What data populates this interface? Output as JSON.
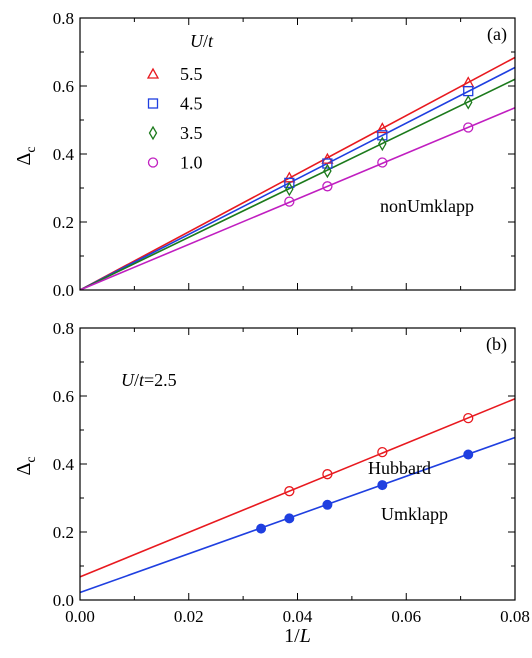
{
  "chart_data": [
    {
      "type": "scatter",
      "panel_label": "(a)",
      "ylabel": "Δc",
      "xlim": [
        0.0,
        0.08
      ],
      "ylim": [
        0.0,
        0.8
      ],
      "x_ticks": [
        "0.00",
        "0.02",
        "0.04",
        "0.06",
        "0.08"
      ],
      "y_ticks": [
        "0.0",
        "0.2",
        "0.4",
        "0.6",
        "0.8"
      ],
      "legend": {
        "title": "U/t",
        "placement": "top-left"
      },
      "annotation": "nonUmklapp",
      "series": [
        {
          "name": "5.5",
          "marker": "triangle-open",
          "color": "#e8191f",
          "x": [
            0.0385,
            0.0455,
            0.0556,
            0.0714
          ],
          "y": [
            0.33,
            0.385,
            0.475,
            0.61
          ],
          "fit": {
            "intercept": 0.0,
            "slope": 8.55
          }
        },
        {
          "name": "4.5",
          "marker": "square-open",
          "color": "#1f3fe0",
          "x": [
            0.0385,
            0.0455,
            0.0556,
            0.0714
          ],
          "y": [
            0.315,
            0.372,
            0.455,
            0.585
          ],
          "fit": {
            "intercept": 0.0,
            "slope": 8.18
          }
        },
        {
          "name": "3.5",
          "marker": "diamond-open",
          "color": "#1c7a1c",
          "x": [
            0.0385,
            0.0455,
            0.0556,
            0.0714
          ],
          "y": [
            0.297,
            0.35,
            0.43,
            0.552
          ],
          "fit": {
            "intercept": 0.0,
            "slope": 7.75
          }
        },
        {
          "name": "1.0",
          "marker": "circle-open",
          "color": "#c01ec0",
          "x": [
            0.0385,
            0.0455,
            0.0556,
            0.0714
          ],
          "y": [
            0.26,
            0.305,
            0.375,
            0.478
          ],
          "fit": {
            "intercept": 0.0,
            "slope": 6.7
          }
        }
      ]
    },
    {
      "type": "scatter",
      "panel_label": "(b)",
      "xlabel": "1/L",
      "ylabel": "Δc",
      "xlim": [
        0.0,
        0.08
      ],
      "ylim": [
        0.0,
        0.8
      ],
      "x_ticks": [
        "0.00",
        "0.02",
        "0.04",
        "0.06",
        "0.08"
      ],
      "y_ticks": [
        "0.0",
        "0.2",
        "0.4",
        "0.6",
        "0.8"
      ],
      "annotation": "U/t=2.5",
      "series": [
        {
          "name": "Hubbard",
          "marker": "circle-open",
          "color": "#e8191f",
          "x": [
            0.0385,
            0.0455,
            0.0556,
            0.0714
          ],
          "y": [
            0.32,
            0.37,
            0.435,
            0.535
          ],
          "fit": {
            "intercept": 0.068,
            "slope": 6.55
          }
        },
        {
          "name": "Umklapp",
          "marker": "circle-filled",
          "color": "#1f3fe0",
          "x": [
            0.0333,
            0.0385,
            0.0455,
            0.0556,
            0.0714
          ],
          "y": [
            0.21,
            0.24,
            0.28,
            0.338,
            0.428
          ],
          "fit": {
            "intercept": 0.022,
            "slope": 5.7
          }
        }
      ]
    }
  ]
}
